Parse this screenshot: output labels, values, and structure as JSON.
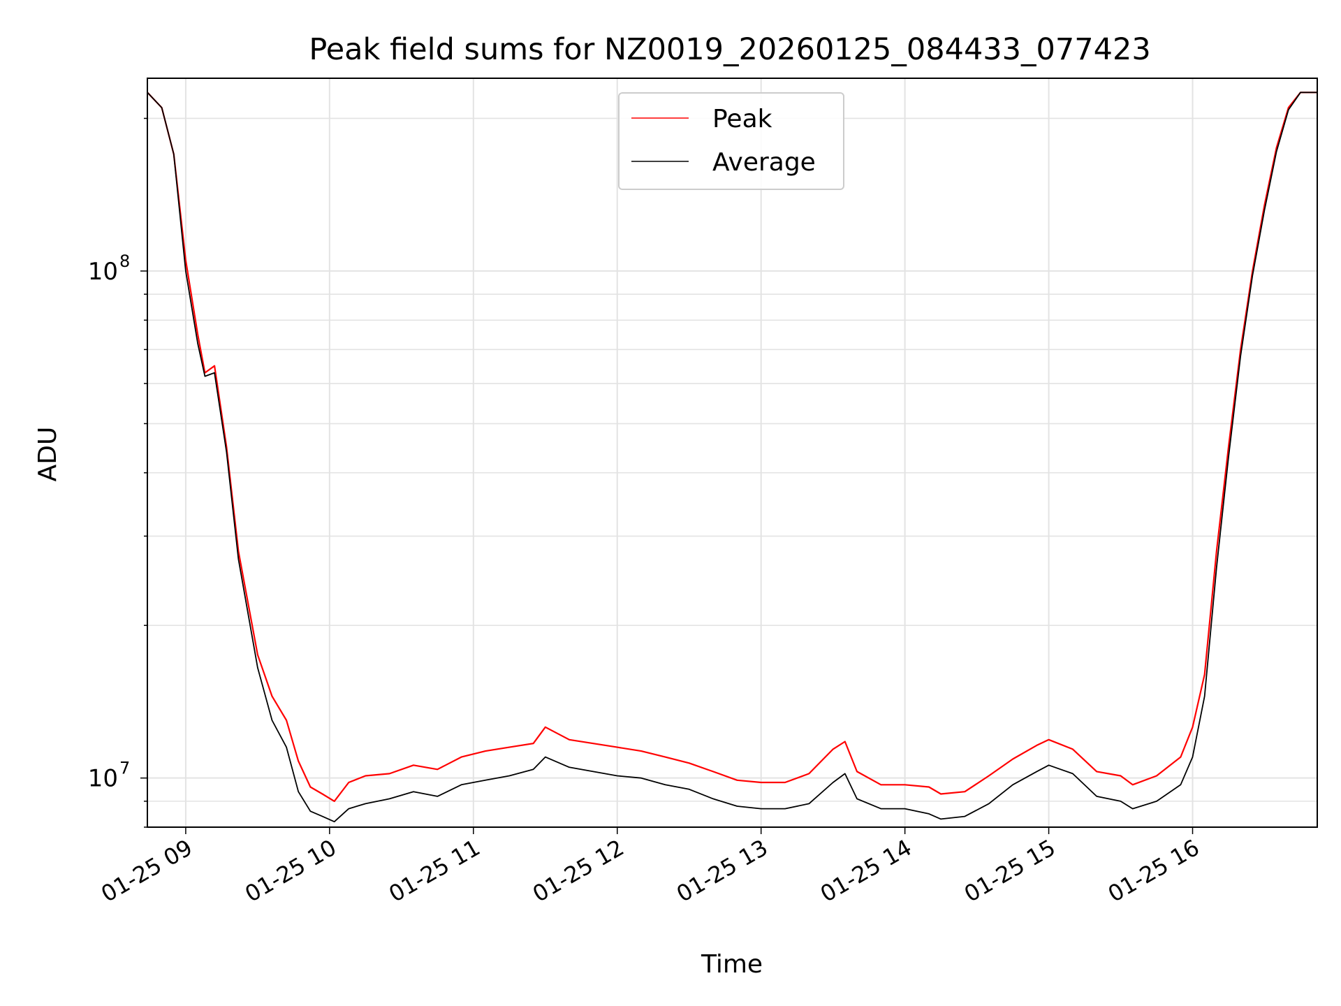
{
  "chart_data": {
    "type": "line",
    "title": "Peak field sums for NZ0019_20260125_084433_077423",
    "xlabel": "Time",
    "ylabel": "ADU",
    "yscale": "log",
    "ylim": [
      8000000,
      240000000
    ],
    "xlim": [
      "01-25 08:44",
      "01-25 16:52"
    ],
    "grid": true,
    "legend_position": "top-center",
    "x_ticks": [
      "01-25 09",
      "01-25 10",
      "01-25 11",
      "01-25 12",
      "01-25 13",
      "01-25 14",
      "01-25 15",
      "01-25 16"
    ],
    "y_tick_labels": [
      {
        "base": "10",
        "exp": "7",
        "value": 10000000
      },
      {
        "base": "10",
        "exp": "8",
        "value": 100000000
      }
    ],
    "series": [
      {
        "name": "Peak",
        "color": "#ff0000",
        "x": [
          "08:44",
          "08:50",
          "08:55",
          "09:00",
          "09:05",
          "09:08",
          "09:12",
          "09:17",
          "09:22",
          "09:30",
          "09:36",
          "09:42",
          "09:47",
          "09:52",
          "09:57",
          "10:02",
          "10:08",
          "10:15",
          "10:25",
          "10:35",
          "10:45",
          "10:55",
          "11:05",
          "11:15",
          "11:25",
          "11:30",
          "11:40",
          "11:50",
          "12:00",
          "12:10",
          "12:20",
          "12:30",
          "12:40",
          "12:50",
          "13:00",
          "13:10",
          "13:20",
          "13:30",
          "13:35",
          "13:40",
          "13:50",
          "14:00",
          "14:10",
          "14:15",
          "14:25",
          "14:35",
          "14:45",
          "14:55",
          "15:00",
          "15:10",
          "15:20",
          "15:30",
          "15:35",
          "15:45",
          "15:55",
          "16:00",
          "16:05",
          "16:10",
          "16:15",
          "16:20",
          "16:25",
          "16:30",
          "16:35",
          "16:40",
          "16:45",
          "16:52"
        ],
        "values": [
          225000000,
          210000000,
          170000000,
          105000000,
          75000000,
          63000000,
          65000000,
          45000000,
          28000000,
          17500000,
          14500000,
          13000000,
          10800000,
          9600000,
          9300000,
          9000000,
          9800000,
          10100000,
          10200000,
          10600000,
          10400000,
          11000000,
          11300000,
          11500000,
          11700000,
          12600000,
          11900000,
          11700000,
          11500000,
          11300000,
          11000000,
          10700000,
          10300000,
          9900000,
          9800000,
          9800000,
          10200000,
          11400000,
          11800000,
          10300000,
          9700000,
          9700000,
          9600000,
          9300000,
          9400000,
          10100000,
          10900000,
          11600000,
          11900000,
          11400000,
          10300000,
          10100000,
          9700000,
          10100000,
          11000000,
          12600000,
          16000000,
          28000000,
          45000000,
          70000000,
          100000000,
          135000000,
          175000000,
          210000000,
          225000000,
          225000000
        ]
      },
      {
        "name": "Average",
        "color": "#000000",
        "x": [
          "08:44",
          "08:50",
          "08:55",
          "09:00",
          "09:05",
          "09:08",
          "09:12",
          "09:17",
          "09:22",
          "09:30",
          "09:36",
          "09:42",
          "09:47",
          "09:52",
          "09:57",
          "10:02",
          "10:08",
          "10:15",
          "10:25",
          "10:35",
          "10:45",
          "10:55",
          "11:05",
          "11:15",
          "11:25",
          "11:30",
          "11:40",
          "11:50",
          "12:00",
          "12:10",
          "12:20",
          "12:30",
          "12:40",
          "12:50",
          "13:00",
          "13:10",
          "13:20",
          "13:30",
          "13:35",
          "13:40",
          "13:50",
          "14:00",
          "14:10",
          "14:15",
          "14:25",
          "14:35",
          "14:45",
          "14:55",
          "15:00",
          "15:10",
          "15:20",
          "15:30",
          "15:35",
          "15:45",
          "15:55",
          "16:00",
          "16:05",
          "16:10",
          "16:15",
          "16:20",
          "16:25",
          "16:30",
          "16:35",
          "16:40",
          "16:45",
          "16:52"
        ],
        "values": [
          225000000,
          210000000,
          170000000,
          100000000,
          72000000,
          62000000,
          63000000,
          44000000,
          27000000,
          16500000,
          13000000,
          11500000,
          9400000,
          8600000,
          8400000,
          8200000,
          8700000,
          8900000,
          9100000,
          9400000,
          9200000,
          9700000,
          9900000,
          10100000,
          10400000,
          11000000,
          10500000,
          10300000,
          10100000,
          10000000,
          9700000,
          9500000,
          9100000,
          8800000,
          8700000,
          8700000,
          8900000,
          9800000,
          10200000,
          9100000,
          8700000,
          8700000,
          8500000,
          8300000,
          8400000,
          8900000,
          9700000,
          10300000,
          10600000,
          10200000,
          9200000,
          9000000,
          8700000,
          9000000,
          9700000,
          11000000,
          14500000,
          26000000,
          43000000,
          68000000,
          98000000,
          132000000,
          172000000,
          208000000,
          225000000,
          225000000
        ]
      }
    ]
  }
}
